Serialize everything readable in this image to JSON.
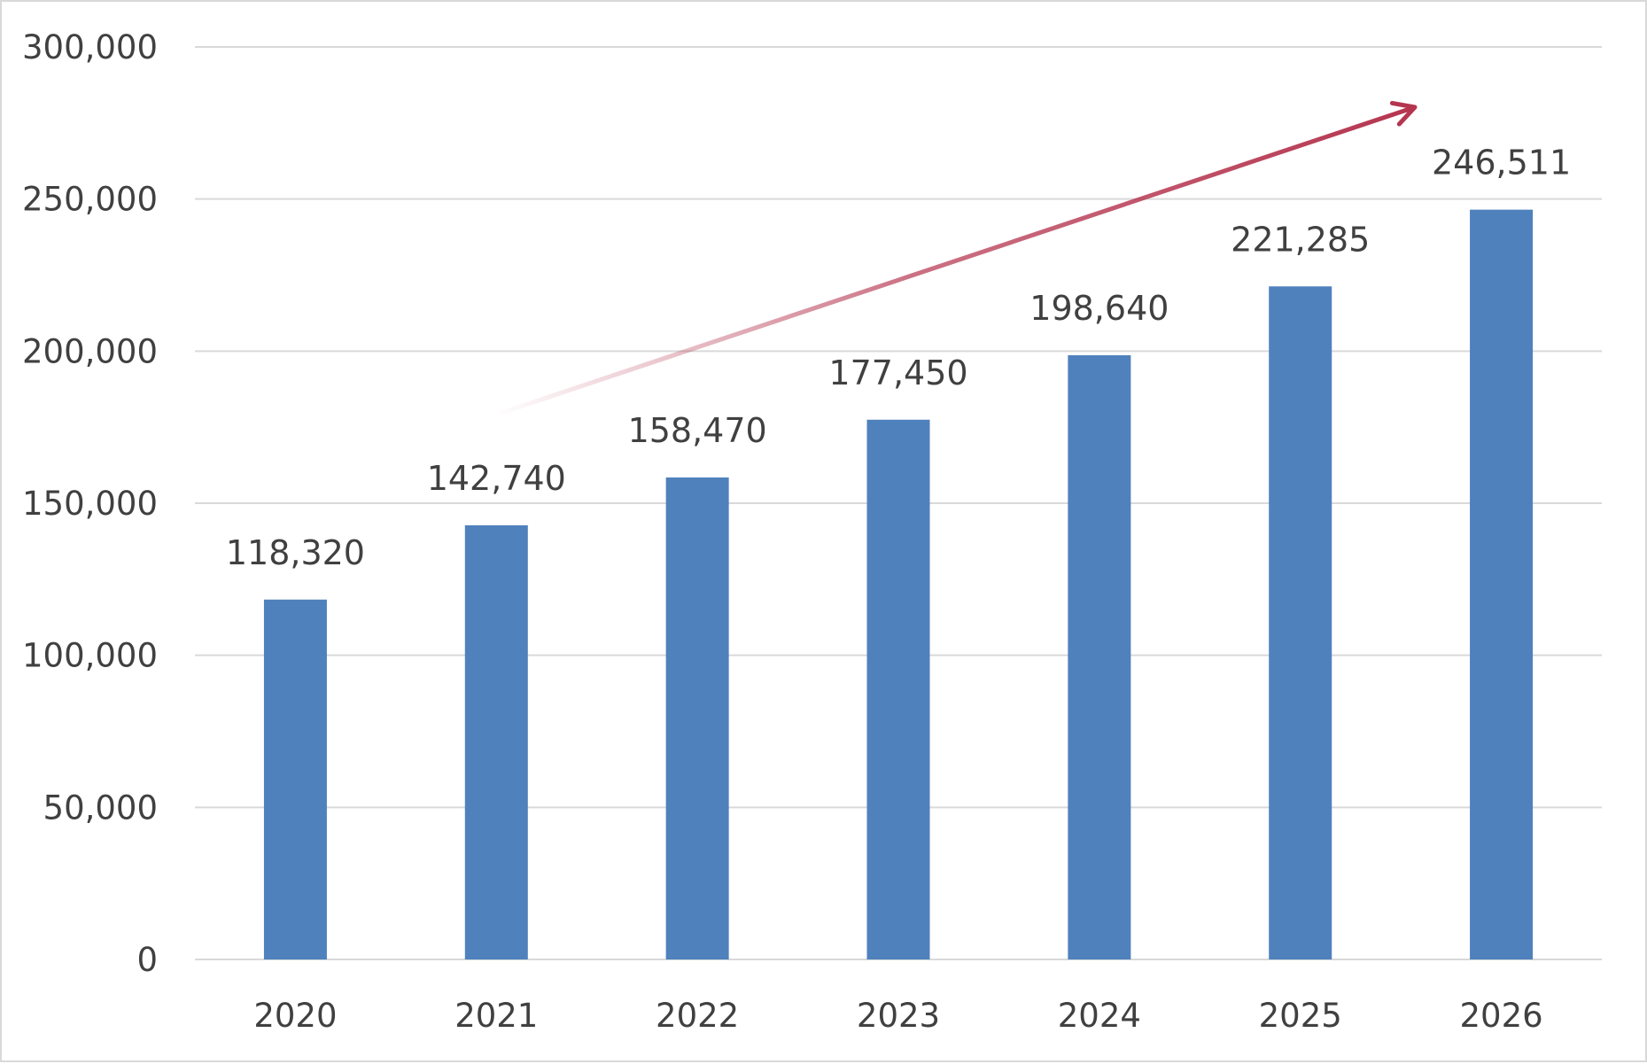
{
  "chart_data": {
    "type": "bar",
    "title": "",
    "xlabel": "",
    "ylabel": "",
    "categories": [
      "2020",
      "2021",
      "2022",
      "2023",
      "2024",
      "2025",
      "2026"
    ],
    "values": [
      118320,
      142740,
      158470,
      177450,
      198640,
      221285,
      246511
    ],
    "value_labels": [
      "118,320",
      "142,740",
      "158,470",
      "177,450",
      "198,640",
      "221,285",
      "246,511"
    ],
    "ylim": [
      0,
      300000
    ],
    "yticks": [
      0,
      50000,
      100000,
      150000,
      200000,
      250000,
      300000
    ],
    "ytick_labels": [
      "0",
      "50,000",
      "100,000",
      "150,000",
      "200,000",
      "250,000",
      "300,000"
    ],
    "grid": true,
    "legend": "none",
    "bar_color": "#4f81bd",
    "annotations": [
      {
        "type": "trend-arrow",
        "from": "2021",
        "to": "2026",
        "color": "#b5354f",
        "gradient": "fades in from left"
      }
    ]
  }
}
